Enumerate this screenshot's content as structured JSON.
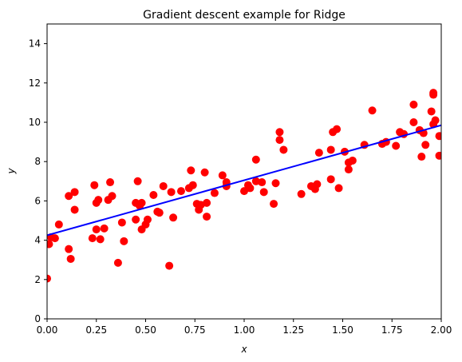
{
  "chart_data": {
    "type": "scatter",
    "title": "Gradient descent example for Ridge",
    "xlabel": "x",
    "ylabel": "y",
    "xlim": [
      0,
      2.0
    ],
    "ylim": [
      0,
      15
    ],
    "xticks": [
      "0.00",
      "0.25",
      "0.50",
      "0.75",
      "1.00",
      "1.25",
      "1.50",
      "1.75",
      "2.00"
    ],
    "yticks": [
      "0",
      "2",
      "4",
      "6",
      "8",
      "10",
      "12",
      "14"
    ],
    "grid": false,
    "legend": "none",
    "series": [
      {
        "kind": "points",
        "color": "#ff0000",
        "points": [
          [
            0.0,
            2.05
          ],
          [
            0.01,
            3.8
          ],
          [
            0.02,
            4.15
          ],
          [
            0.04,
            4.1
          ],
          [
            0.06,
            4.8
          ],
          [
            0.11,
            3.55
          ],
          [
            0.11,
            6.25
          ],
          [
            0.12,
            3.05
          ],
          [
            0.14,
            5.55
          ],
          [
            0.14,
            6.45
          ],
          [
            0.23,
            4.1
          ],
          [
            0.24,
            6.8
          ],
          [
            0.25,
            4.55
          ],
          [
            0.25,
            5.9
          ],
          [
            0.26,
            6.05
          ],
          [
            0.27,
            4.05
          ],
          [
            0.29,
            4.6
          ],
          [
            0.31,
            6.05
          ],
          [
            0.32,
            6.95
          ],
          [
            0.33,
            6.25
          ],
          [
            0.36,
            2.85
          ],
          [
            0.38,
            4.9
          ],
          [
            0.39,
            3.95
          ],
          [
            0.45,
            5.9
          ],
          [
            0.45,
            5.05
          ],
          [
            0.46,
            7.0
          ],
          [
            0.47,
            5.75
          ],
          [
            0.48,
            5.9
          ],
          [
            0.48,
            4.55
          ],
          [
            0.5,
            4.8
          ],
          [
            0.51,
            5.05
          ],
          [
            0.54,
            6.3
          ],
          [
            0.56,
            5.45
          ],
          [
            0.57,
            5.4
          ],
          [
            0.59,
            6.75
          ],
          [
            0.62,
            2.7
          ],
          [
            0.63,
            6.45
          ],
          [
            0.64,
            5.15
          ],
          [
            0.68,
            6.5
          ],
          [
            0.72,
            6.65
          ],
          [
            0.73,
            7.55
          ],
          [
            0.74,
            6.8
          ],
          [
            0.76,
            5.85
          ],
          [
            0.77,
            5.55
          ],
          [
            0.78,
            5.8
          ],
          [
            0.8,
            7.45
          ],
          [
            0.81,
            5.9
          ],
          [
            0.81,
            5.2
          ],
          [
            0.85,
            6.4
          ],
          [
            0.89,
            7.3
          ],
          [
            0.91,
            6.75
          ],
          [
            0.91,
            6.95
          ],
          [
            1.0,
            6.5
          ],
          [
            1.02,
            6.8
          ],
          [
            1.03,
            6.65
          ],
          [
            1.06,
            7.0
          ],
          [
            1.06,
            8.1
          ],
          [
            1.09,
            6.95
          ],
          [
            1.1,
            6.45
          ],
          [
            1.15,
            5.85
          ],
          [
            1.16,
            6.9
          ],
          [
            1.18,
            9.1
          ],
          [
            1.18,
            9.5
          ],
          [
            1.2,
            8.6
          ],
          [
            1.29,
            6.35
          ],
          [
            1.34,
            6.75
          ],
          [
            1.36,
            6.6
          ],
          [
            1.37,
            6.85
          ],
          [
            1.38,
            8.45
          ],
          [
            1.44,
            7.1
          ],
          [
            1.44,
            8.6
          ],
          [
            1.45,
            9.5
          ],
          [
            1.47,
            9.65
          ],
          [
            1.48,
            6.65
          ],
          [
            1.51,
            8.5
          ],
          [
            1.53,
            7.95
          ],
          [
            1.53,
            7.6
          ],
          [
            1.55,
            8.05
          ],
          [
            1.61,
            8.85
          ],
          [
            1.65,
            10.6
          ],
          [
            1.7,
            8.9
          ],
          [
            1.72,
            9.0
          ],
          [
            1.77,
            8.8
          ],
          [
            1.79,
            9.5
          ],
          [
            1.81,
            9.4
          ],
          [
            1.86,
            10.9
          ],
          [
            1.86,
            10.0
          ],
          [
            1.89,
            9.6
          ],
          [
            1.9,
            8.25
          ],
          [
            1.91,
            9.45
          ],
          [
            1.92,
            8.85
          ],
          [
            1.95,
            10.55
          ],
          [
            1.96,
            11.4
          ],
          [
            1.96,
            11.5
          ],
          [
            1.96,
            9.9
          ],
          [
            1.97,
            10.1
          ],
          [
            1.99,
            9.3
          ],
          [
            1.99,
            8.3
          ]
        ]
      },
      {
        "kind": "line",
        "color": "#0000ff",
        "start": [
          0.0,
          4.25
        ],
        "end": [
          2.0,
          9.85
        ]
      }
    ]
  }
}
